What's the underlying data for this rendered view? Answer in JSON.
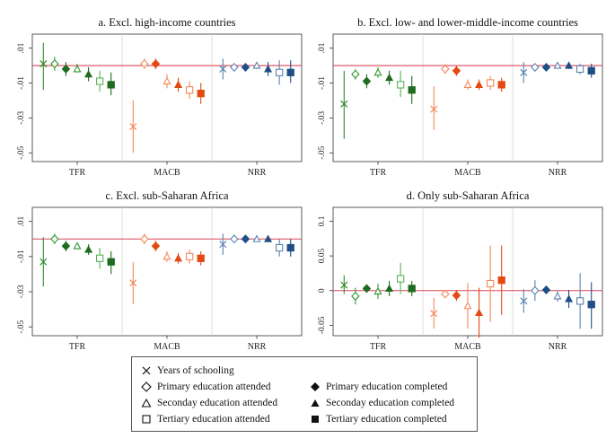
{
  "colors": {
    "years": "#2e8b2e",
    "tfr_dark": "#1f6b1f",
    "tfr_mid": "#2f9a2f",
    "tfr_light": "#59b359",
    "macb_light": "#f4885a",
    "macb": "#ee5a24",
    "macb_dark": "#e34a12",
    "nrr_light": "#5b82b0",
    "nrr": "#2f5f96",
    "nrr_dark": "#1f4f86",
    "refline": "#d9475a",
    "frame": "#333333"
  },
  "chart_data": [
    {
      "type": "scatter",
      "subtype": "point-range",
      "title": "a. Excl. high-income countries",
      "ylim": [
        -0.055,
        0.018
      ],
      "yticks": [
        0.01,
        -0.01,
        -0.03,
        -0.05
      ],
      "ytick_labels": [
        ".01",
        "-.01",
        "-.03",
        "-.05"
      ],
      "refline": 0,
      "groups": [
        "TFR",
        "MACB",
        "NRR"
      ],
      "markers": [
        "x",
        "open-diamond",
        "filled-diamond",
        "open-triangle",
        "filled-triangle",
        "open-square",
        "filled-square"
      ],
      "points": {
        "TFR": [
          [
            0.001,
            -0.014,
            0.013
          ],
          [
            0.001,
            -0.003,
            0.005
          ],
          [
            -0.002,
            -0.006,
            0.002
          ],
          [
            -0.002,
            -0.004,
            0.001
          ],
          [
            -0.005,
            -0.009,
            -0.001
          ],
          [
            -0.009,
            -0.015,
            -0.003
          ],
          [
            -0.011,
            -0.017,
            -0.004
          ]
        ],
        "MACB": [
          [
            -0.035,
            -0.05,
            -0.02
          ],
          [
            0.001,
            -0.002,
            0.004
          ],
          [
            0.001,
            -0.002,
            0.004
          ],
          [
            -0.009,
            -0.013,
            -0.005
          ],
          [
            -0.011,
            -0.015,
            -0.007
          ],
          [
            -0.014,
            -0.019,
            -0.009
          ],
          [
            -0.016,
            -0.022,
            -0.01
          ]
        ],
        "NRR": [
          [
            -0.002,
            -0.008,
            0.004
          ],
          [
            -0.001,
            -0.003,
            0.001
          ],
          [
            -0.001,
            -0.003,
            0.001
          ],
          [
            0.0,
            -0.002,
            0.002
          ],
          [
            -0.002,
            -0.006,
            0.002
          ],
          [
            -0.004,
            -0.011,
            0.003
          ],
          [
            -0.004,
            -0.01,
            0.003
          ]
        ]
      }
    },
    {
      "type": "scatter",
      "subtype": "point-range",
      "title": "b. Excl. low- and lower-middle-income countries",
      "ylim": [
        -0.055,
        0.018
      ],
      "yticks": [
        0.01,
        -0.01,
        -0.03,
        -0.05
      ],
      "ytick_labels": [
        ".01",
        "-.01",
        "-.03",
        "-.05"
      ],
      "refline": 0,
      "groups": [
        "TFR",
        "MACB",
        "NRR"
      ],
      "markers": [
        "x",
        "open-diamond",
        "filled-diamond",
        "open-triangle",
        "filled-triangle",
        "open-square",
        "filled-square"
      ],
      "points": {
        "TFR": [
          [
            -0.022,
            -0.042,
            -0.003
          ],
          [
            -0.005,
            -0.008,
            -0.002
          ],
          [
            -0.009,
            -0.013,
            -0.005
          ],
          [
            -0.004,
            -0.007,
            -0.001
          ],
          [
            -0.007,
            -0.011,
            -0.003
          ],
          [
            -0.011,
            -0.018,
            -0.003
          ],
          [
            -0.014,
            -0.022,
            -0.006
          ]
        ],
        "MACB": [
          [
            -0.025,
            -0.037,
            -0.012
          ],
          [
            -0.002,
            -0.005,
            0.001
          ],
          [
            -0.003,
            -0.006,
            0.0
          ],
          [
            -0.011,
            -0.014,
            -0.008
          ],
          [
            -0.011,
            -0.014,
            -0.008
          ],
          [
            -0.01,
            -0.014,
            -0.006
          ],
          [
            -0.011,
            -0.015,
            -0.007
          ]
        ],
        "NRR": [
          [
            -0.004,
            -0.01,
            0.002
          ],
          [
            -0.001,
            -0.003,
            0.001
          ],
          [
            -0.001,
            -0.003,
            0.001
          ],
          [
            0.0,
            -0.001,
            0.001
          ],
          [
            0.0,
            -0.002,
            0.001
          ],
          [
            -0.002,
            -0.005,
            0.001
          ],
          [
            -0.003,
            -0.007,
            0.001
          ]
        ]
      }
    },
    {
      "type": "scatter",
      "subtype": "point-range",
      "title": "c. Excl. sub-Saharan Africa",
      "ylim": [
        -0.055,
        0.018
      ],
      "yticks": [
        0.01,
        -0.01,
        -0.03,
        -0.05
      ],
      "ytick_labels": [
        ".01",
        "-.01",
        "-.03",
        "-.05"
      ],
      "refline": 0,
      "groups": [
        "TFR",
        "MACB",
        "NRR"
      ],
      "markers": [
        "x",
        "open-diamond",
        "filled-diamond",
        "open-triangle",
        "filled-triangle",
        "open-square",
        "filled-square"
      ],
      "points": {
        "TFR": [
          [
            -0.013,
            -0.027,
            0.001
          ],
          [
            0.0,
            -0.003,
            0.003
          ],
          [
            -0.004,
            -0.007,
            -0.001
          ],
          [
            -0.004,
            -0.006,
            -0.002
          ],
          [
            -0.006,
            -0.009,
            -0.003
          ],
          [
            -0.011,
            -0.017,
            -0.005
          ],
          [
            -0.013,
            -0.02,
            -0.007
          ]
        ],
        "MACB": [
          [
            -0.025,
            -0.037,
            -0.013
          ],
          [
            0.0,
            -0.003,
            0.003
          ],
          [
            -0.004,
            -0.007,
            -0.001
          ],
          [
            -0.01,
            -0.013,
            -0.007
          ],
          [
            -0.011,
            -0.014,
            -0.008
          ],
          [
            -0.01,
            -0.014,
            -0.006
          ],
          [
            -0.011,
            -0.015,
            -0.007
          ]
        ],
        "NRR": [
          [
            -0.003,
            -0.009,
            0.003
          ],
          [
            0.0,
            -0.001,
            0.001
          ],
          [
            0.0,
            -0.001,
            0.001
          ],
          [
            0.0,
            -0.001,
            0.001
          ],
          [
            0.0,
            -0.001,
            0.001
          ],
          [
            -0.005,
            -0.01,
            0.0
          ],
          [
            -0.005,
            -0.01,
            0.0
          ]
        ]
      }
    },
    {
      "type": "scatter",
      "subtype": "point-range",
      "title": "d. Only sub-Saharan Africa",
      "ylim": [
        -0.065,
        0.12
      ],
      "yticks": [
        0.1,
        0.05,
        0,
        -0.05
      ],
      "ytick_labels": [
        "0.1",
        "0.05",
        "0",
        "-0.05"
      ],
      "refline": 0,
      "groups": [
        "TFR",
        "MACB",
        "NRR"
      ],
      "markers": [
        "x",
        "open-diamond",
        "filled-diamond",
        "open-triangle",
        "filled-triangle",
        "open-square",
        "filled-square"
      ],
      "points": {
        "TFR": [
          [
            0.008,
            -0.005,
            0.022
          ],
          [
            -0.008,
            -0.02,
            0.004
          ],
          [
            0.003,
            -0.003,
            0.008
          ],
          [
            -0.001,
            -0.012,
            0.01
          ],
          [
            0.003,
            -0.008,
            0.014
          ],
          [
            0.017,
            -0.005,
            0.04
          ],
          [
            0.003,
            -0.008,
            0.014
          ]
        ],
        "MACB": [
          [
            -0.033,
            -0.055,
            -0.01
          ],
          [
            -0.005,
            -0.01,
            0.0
          ],
          [
            -0.007,
            -0.015,
            0.001
          ],
          [
            -0.022,
            -0.055,
            0.011
          ],
          [
            -0.032,
            -0.068,
            0.004
          ],
          [
            0.01,
            -0.045,
            0.065
          ],
          [
            0.015,
            -0.035,
            0.065
          ]
        ],
        "NRR": [
          [
            -0.015,
            -0.032,
            0.002
          ],
          [
            0.0,
            -0.015,
            0.015
          ],
          [
            0.001,
            -0.004,
            0.006
          ],
          [
            -0.008,
            -0.016,
            0.0
          ],
          [
            -0.012,
            -0.025,
            0.001
          ],
          [
            -0.015,
            -0.055,
            0.025
          ],
          [
            -0.02,
            -0.055,
            0.012
          ]
        ]
      }
    }
  ],
  "legend": {
    "items": [
      {
        "marker": "x",
        "label": "Years of schooling"
      },
      {
        "marker": "open-diamond",
        "label": "Primary education attended"
      },
      {
        "marker": "filled-diamond",
        "label": "Primary education completed"
      },
      {
        "marker": "open-triangle",
        "label": "Seconday education attended"
      },
      {
        "marker": "filled-triangle",
        "label": "Seconday education completed"
      },
      {
        "marker": "open-square",
        "label": "Tertiary education attended"
      },
      {
        "marker": "filled-square",
        "label": "Tertiary education completed"
      }
    ]
  }
}
